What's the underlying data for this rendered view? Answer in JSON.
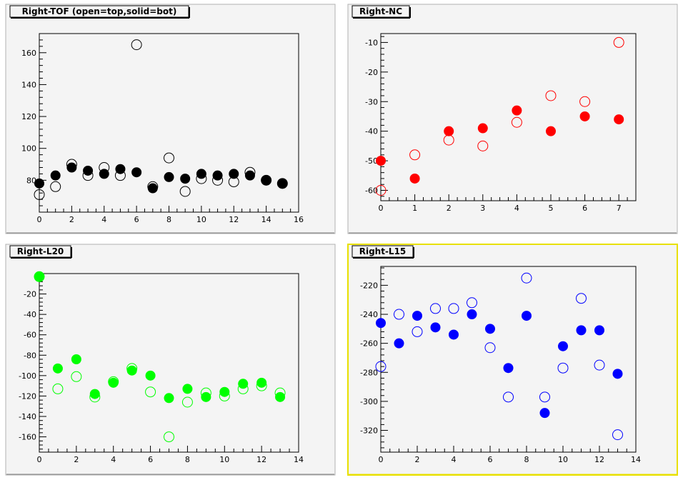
{
  "chart_data": [
    {
      "type": "scatter",
      "title": "Right-TOF (open=top,solid=bot)",
      "xlim": [
        0,
        16
      ],
      "ylim": [
        60,
        172
      ],
      "xticks": [
        0,
        2,
        4,
        6,
        8,
        10,
        12,
        14,
        16
      ],
      "yticks": [
        80,
        100,
        120,
        140,
        160
      ],
      "color": "#000000",
      "series": [
        {
          "marker": "open",
          "x": [
            0,
            1,
            2,
            3,
            4,
            5,
            6,
            7,
            8,
            9,
            10,
            11,
            12,
            13,
            14,
            15
          ],
          "y": [
            71,
            76,
            90,
            83,
            88,
            83,
            165,
            76,
            94,
            73,
            81,
            80,
            79,
            85,
            80,
            78
          ]
        },
        {
          "marker": "solid",
          "x": [
            0,
            1,
            2,
            3,
            4,
            5,
            6,
            7,
            8,
            9,
            10,
            11,
            12,
            13,
            14,
            15
          ],
          "y": [
            78,
            83,
            88,
            86,
            84,
            87,
            85,
            75,
            82,
            81,
            84,
            83,
            84,
            83,
            80,
            78
          ]
        }
      ]
    },
    {
      "type": "scatter",
      "title": "Right-NC",
      "xlim": [
        0,
        7.5
      ],
      "ylim": [
        -63.5,
        -7
      ],
      "xticks": [
        0,
        1,
        2,
        3,
        4,
        5,
        6,
        7
      ],
      "yticks": [
        -10,
        -20,
        -30,
        -40,
        -50,
        -60
      ],
      "color": "#ff0000",
      "series": [
        {
          "marker": "open",
          "x": [
            0,
            1,
            2,
            3,
            4,
            5,
            6,
            7
          ],
          "y": [
            -60,
            -48,
            -43,
            -45,
            -37,
            -28,
            -30,
            -10
          ]
        },
        {
          "marker": "solid",
          "x": [
            0,
            1,
            2,
            3,
            4,
            5,
            6,
            7
          ],
          "y": [
            -50,
            -56,
            -40,
            -39,
            -33,
            -40,
            -35,
            -36
          ]
        }
      ]
    },
    {
      "type": "scatter",
      "title": "Right-L20",
      "xlim": [
        0,
        14
      ],
      "ylim": [
        -175,
        0
      ],
      "xticks": [
        0,
        2,
        4,
        6,
        8,
        10,
        12,
        14
      ],
      "yticks": [
        -20,
        -40,
        -60,
        -80,
        -100,
        -120,
        -140,
        -160
      ],
      "color": "#00ff00",
      "series": [
        {
          "marker": "open",
          "x": [
            0,
            1,
            2,
            3,
            4,
            5,
            6,
            7,
            8,
            9,
            10,
            11,
            12,
            13
          ],
          "y": [
            -3,
            -113,
            -101,
            -121,
            -106,
            -93,
            -116,
            -160,
            -126,
            -117,
            -120,
            -113,
            -110,
            -117
          ]
        },
        {
          "marker": "solid",
          "x": [
            0,
            1,
            2,
            3,
            4,
            5,
            6,
            7,
            8,
            9,
            10,
            11,
            12,
            13
          ],
          "y": [
            -3,
            -93,
            -84,
            -118,
            -107,
            -95,
            -100,
            -122,
            -113,
            -121,
            -116,
            -108,
            -107,
            -121
          ]
        }
      ]
    },
    {
      "type": "scatter",
      "title": "Right-L15",
      "xlim": [
        0,
        14
      ],
      "ylim": [
        -335,
        -207
      ],
      "xticks": [
        0,
        2,
        4,
        6,
        8,
        10,
        12,
        14
      ],
      "yticks": [
        -220,
        -240,
        -260,
        -280,
        -300,
        -320
      ],
      "color": "#0000ff",
      "series": [
        {
          "marker": "open",
          "x": [
            0,
            1,
            2,
            3,
            4,
            5,
            6,
            7,
            8,
            9,
            10,
            11,
            12,
            13
          ],
          "y": [
            -276,
            -240,
            -252,
            -236,
            -236,
            -232,
            -263,
            -297,
            -215,
            -297,
            -277,
            -229,
            -275,
            -323
          ]
        },
        {
          "marker": "solid",
          "x": [
            0,
            1,
            2,
            3,
            4,
            5,
            6,
            7,
            8,
            9,
            10,
            11,
            12,
            13
          ],
          "y": [
            -246,
            -260,
            -241,
            -249,
            -254,
            -240,
            -250,
            -277,
            -241,
            -308,
            -262,
            -251,
            -251,
            -281
          ]
        }
      ]
    }
  ]
}
